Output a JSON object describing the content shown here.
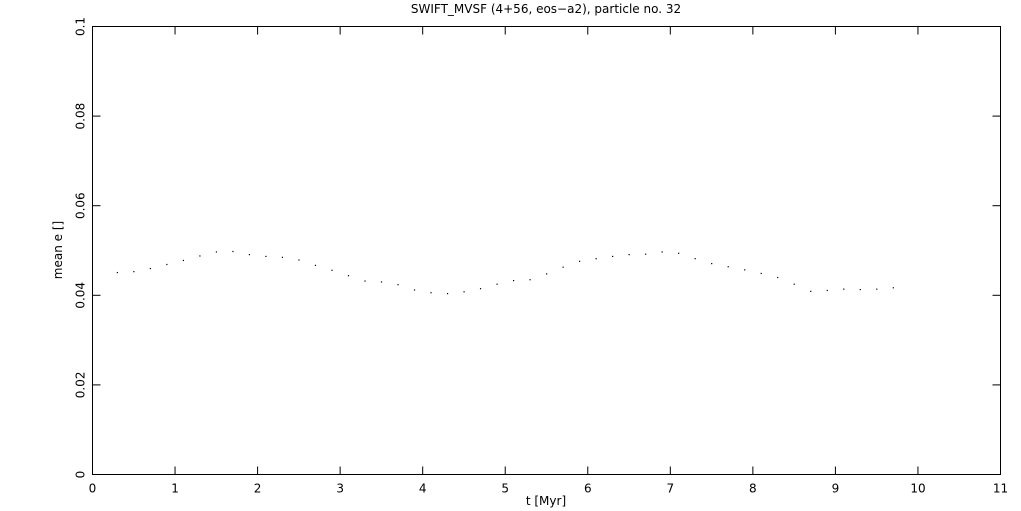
{
  "chart_data": {
    "type": "scatter",
    "title": "SWIFT_MVSF (4+56, eos−a2), particle no. 32",
    "xlabel": "t [Myr]",
    "ylabel": "mean e []",
    "xlim": [
      0,
      11
    ],
    "ylim": [
      0,
      0.1
    ],
    "xticks": [
      0,
      1,
      2,
      3,
      4,
      5,
      6,
      7,
      8,
      9,
      10,
      11
    ],
    "yticks": [
      0,
      0.02,
      0.04,
      0.06,
      0.08,
      0.1
    ],
    "color": "#000000",
    "x": [
      0.3,
      0.5,
      0.7,
      0.9,
      1.1,
      1.3,
      1.5,
      1.7,
      1.9,
      2.1,
      2.3,
      2.5,
      2.7,
      2.9,
      3.1,
      3.3,
      3.5,
      3.7,
      3.9,
      4.1,
      4.3,
      4.5,
      4.7,
      4.9,
      5.1,
      5.3,
      5.5,
      5.7,
      5.9,
      6.1,
      6.3,
      6.5,
      6.7,
      6.9,
      7.1,
      7.3,
      7.5,
      7.7,
      7.9,
      8.1,
      8.3,
      8.5,
      8.7,
      8.9,
      9.1,
      9.3,
      9.5,
      9.7
    ],
    "values": [
      0.0451,
      0.0453,
      0.046,
      0.0469,
      0.0478,
      0.0488,
      0.0497,
      0.0498,
      0.0491,
      0.0487,
      0.0485,
      0.0479,
      0.0467,
      0.0456,
      0.0444,
      0.0432,
      0.043,
      0.0424,
      0.0412,
      0.0406,
      0.0404,
      0.0408,
      0.0415,
      0.0425,
      0.0433,
      0.0435,
      0.0448,
      0.0463,
      0.0476,
      0.0482,
      0.0487,
      0.0491,
      0.0492,
      0.0497,
      0.0494,
      0.0482,
      0.0471,
      0.0464,
      0.0457,
      0.0449,
      0.044,
      0.0425,
      0.0409,
      0.0411,
      0.0414,
      0.0413,
      0.0414,
      0.0417
    ]
  }
}
